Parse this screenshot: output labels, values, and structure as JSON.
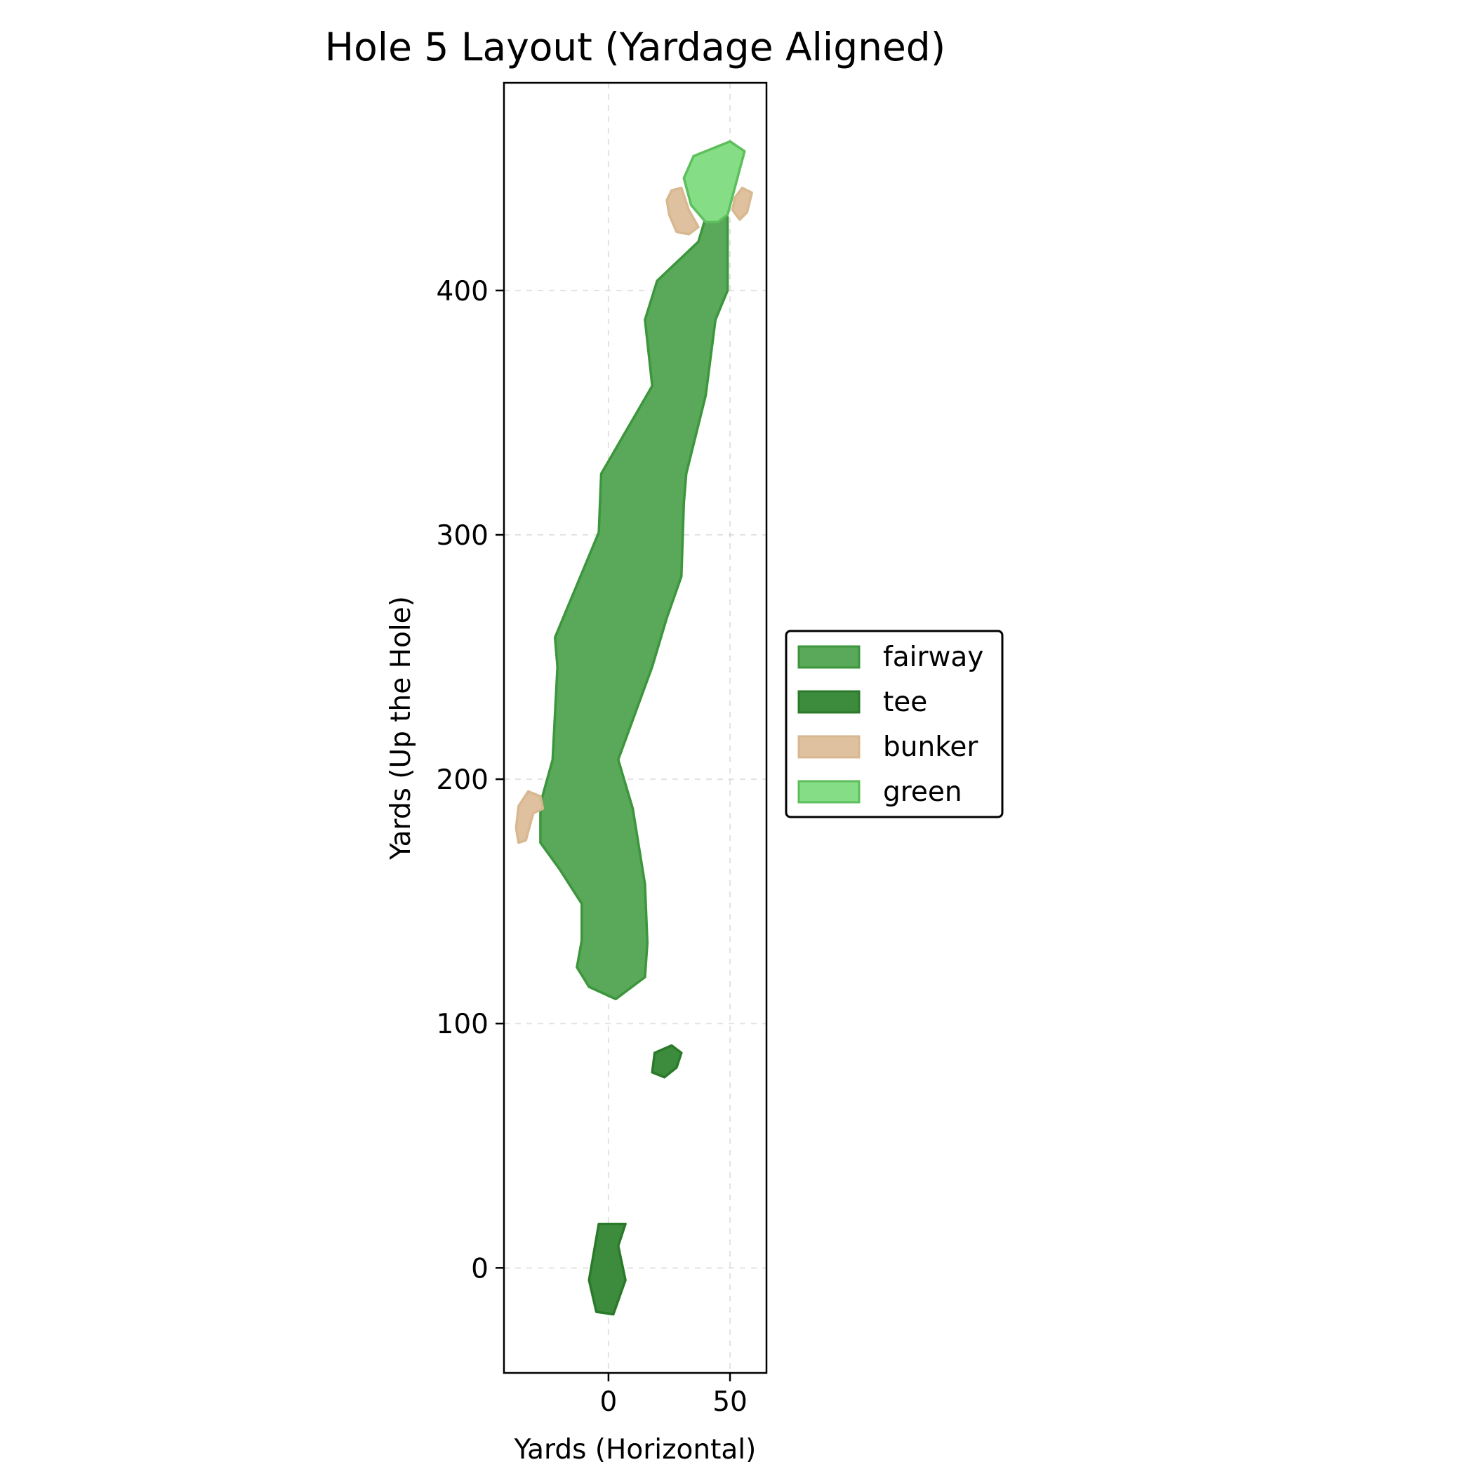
{
  "chart_data": {
    "type": "area",
    "title": "Hole 5 Layout (Yardage Aligned)",
    "xlabel": "Yards (Horizontal)",
    "ylabel": "Yards (Up the Hole)",
    "xlim": [
      -43,
      65
    ],
    "ylim": [
      -43,
      485
    ],
    "xticks": [
      0,
      50
    ],
    "yticks": [
      0,
      100,
      200,
      300,
      400
    ],
    "grid": true,
    "legend_position": "center-right, outside plot",
    "series": [
      {
        "name": "fairway",
        "fill": "#5aa85a",
        "stroke": "#3c963c",
        "polygons": [
          [
            [
              3,
              110
            ],
            [
              -8,
              115
            ],
            [
              -13,
              123
            ],
            [
              -11,
              134
            ],
            [
              -11,
              149
            ],
            [
              -20,
              163
            ],
            [
              -28,
              174
            ],
            [
              -28,
              190
            ],
            [
              -23,
              208
            ],
            [
              -21,
              246
            ],
            [
              -22,
              258
            ],
            [
              -4,
              301
            ],
            [
              -3,
              325
            ],
            [
              18,
              361
            ],
            [
              15,
              388
            ],
            [
              20,
              404
            ],
            [
              37,
              420
            ],
            [
              40,
              430
            ],
            [
              49,
              430
            ],
            [
              49,
              400
            ],
            [
              44,
              388
            ],
            [
              40,
              357
            ],
            [
              32,
              325
            ],
            [
              31,
              313
            ],
            [
              30,
              283
            ],
            [
              24,
              266
            ],
            [
              18,
              246
            ],
            [
              4,
              208
            ],
            [
              10,
              188
            ],
            [
              15,
              157
            ],
            [
              16,
              133
            ],
            [
              15,
              119
            ],
            [
              3,
              110
            ]
          ]
        ]
      },
      {
        "name": "tee",
        "fill": "#3d8c3d",
        "stroke": "#2a7a2a",
        "polygons": [
          [
            [
              18,
              80
            ],
            [
              23,
              78
            ],
            [
              28,
              82
            ],
            [
              30,
              88
            ],
            [
              26,
              91
            ],
            [
              19,
              88
            ],
            [
              18,
              80
            ]
          ],
          [
            [
              -5,
              -18
            ],
            [
              2,
              -19
            ],
            [
              7,
              -5
            ],
            [
              4,
              9
            ],
            [
              7,
              18
            ],
            [
              -4,
              18
            ],
            [
              -8,
              -5
            ],
            [
              -5,
              -18
            ]
          ]
        ]
      },
      {
        "name": "bunker",
        "fill": "#dfc19f",
        "stroke": "#d8b890",
        "polygons": [
          [
            [
              -37,
              174
            ],
            [
              -34,
              175
            ],
            [
              -31,
              186
            ],
            [
              -27,
              188
            ],
            [
              -28,
              193
            ],
            [
              -33,
              195
            ],
            [
              -37,
              189
            ],
            [
              -38,
              180
            ],
            [
              -37,
              174
            ]
          ],
          [
            [
              28,
              424
            ],
            [
              33,
              423
            ],
            [
              37,
              426
            ],
            [
              33,
              433
            ],
            [
              30,
              442
            ],
            [
              26,
              441
            ],
            [
              24,
              437
            ],
            [
              25,
              431
            ],
            [
              28,
              424
            ]
          ],
          [
            [
              54,
              429
            ],
            [
              57,
              432
            ],
            [
              59,
              440
            ],
            [
              55,
              442
            ],
            [
              52,
              438
            ],
            [
              51,
              433
            ],
            [
              54,
              429
            ]
          ]
        ]
      },
      {
        "name": "green",
        "fill": "#85de85",
        "stroke": "#5cbf5c",
        "polygons": [
          [
            [
              40,
              428
            ],
            [
              45,
              428
            ],
            [
              49,
              431
            ],
            [
              56,
              457
            ],
            [
              50,
              461
            ],
            [
              35,
              455
            ],
            [
              31,
              446
            ],
            [
              34,
              435
            ],
            [
              40,
              428
            ]
          ]
        ]
      }
    ]
  }
}
